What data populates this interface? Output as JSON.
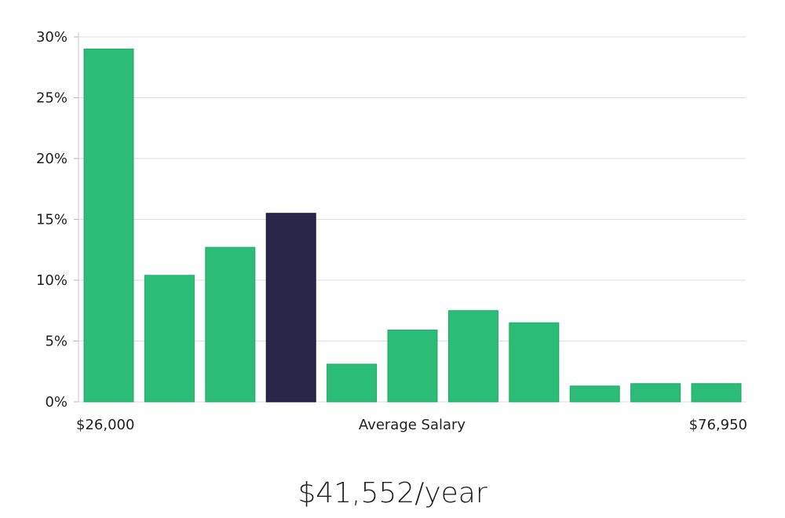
{
  "chart_data": {
    "type": "bar",
    "title": "",
    "xlabel": "Average Salary",
    "ylabel": "",
    "x_min_label": "$26,000",
    "x_max_label": "$76,950",
    "ylim": [
      0,
      30
    ],
    "y_ticks": [
      0,
      5,
      10,
      15,
      20,
      25,
      30
    ],
    "y_tick_labels": [
      "0%",
      "5%",
      "10%",
      "15%",
      "20%",
      "25%",
      "30%"
    ],
    "values": [
      29,
      10.4,
      12.7,
      15.5,
      3.1,
      5.9,
      7.5,
      6.5,
      1.3,
      1.5,
      1.5
    ],
    "highlight_index": 3,
    "grid": true,
    "colors": {
      "bar": "#2bbd77",
      "highlight": "#29264a",
      "grid": "#dedee3"
    }
  },
  "salary": {
    "value": "$41,552/year"
  }
}
